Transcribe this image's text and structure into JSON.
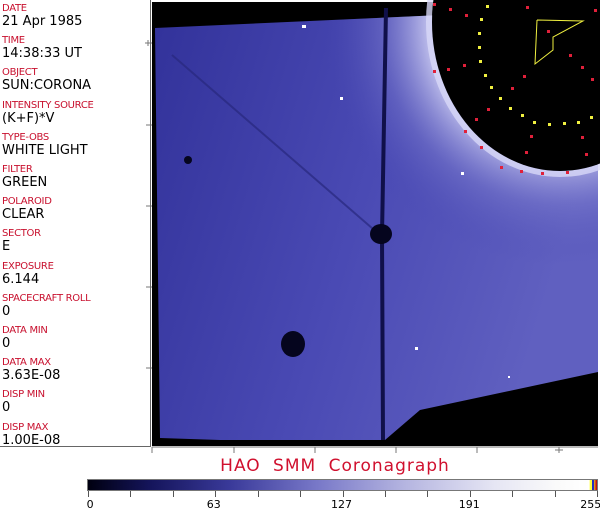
{
  "fields": [
    {
      "label": "DATE",
      "value": "21 Apr 1985"
    },
    {
      "label": "TIME",
      "value": "14:38:33 UT"
    },
    {
      "label": "OBJECT",
      "value": "SUN:CORONA"
    },
    {
      "label": "INTENSITY SOURCE",
      "value": "(K+F)*V"
    },
    {
      "label": "TYPE-OBS",
      "value": "WHITE LIGHT"
    },
    {
      "label": "FILTER",
      "value": "GREEN"
    },
    {
      "label": "POLAROID",
      "value": "CLEAR"
    },
    {
      "label": "SECTOR",
      "value": "E"
    },
    {
      "label": "EXPOSURE",
      "value": "6.144"
    },
    {
      "label": "SPACECRAFT ROLL",
      "value": "0"
    },
    {
      "label": "DATA MIN",
      "value": "0"
    },
    {
      "label": "DATA MAX",
      "value": "3.63E-08"
    },
    {
      "label": "DISP MIN",
      "value": "0"
    },
    {
      "label": "DISP MAX",
      "value": "1.00E-08"
    }
  ],
  "title": "HAO  SMM  Coronagraph",
  "colorbar": {
    "min": 0,
    "max": 255,
    "tick_labels": [
      "0",
      "63",
      "127",
      "191",
      "255"
    ]
  },
  "colors": {
    "label": "#c8102e",
    "image_blue": "#3c3ca6",
    "grid_red": "#e0203a",
    "grid_yellow": "#f0f040"
  }
}
